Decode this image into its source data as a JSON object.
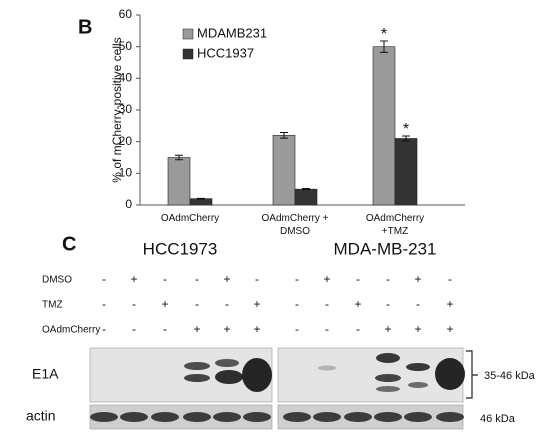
{
  "chart_data": {
    "type": "bar",
    "panel_label": "B",
    "ylabel": "% of mCherry-positive  cells",
    "categories": [
      "OAdmCherry",
      "OAdmCherry +\nDMSO",
      "OAdmCherry\n+TMZ"
    ],
    "series": [
      {
        "name": "MDAMB231",
        "color": "#9a9a9a",
        "values": [
          15,
          22,
          50
        ],
        "errors": [
          0.7,
          0.9,
          1.8
        ]
      },
      {
        "name": "HCC1937",
        "color": "#333333",
        "values": [
          2,
          5,
          21
        ],
        "errors": [
          0.1,
          0.2,
          0.8
        ]
      }
    ],
    "annotations": [
      "*",
      "*"
    ],
    "ylim": [
      0,
      60
    ],
    "yticks": [
      0,
      10,
      20,
      30,
      40,
      50,
      60
    ],
    "legend": "top-left"
  },
  "panel_c": {
    "panel_label": "C",
    "treatments": [
      "DMSO",
      "TMZ",
      "OAdmCherry"
    ],
    "groups": [
      {
        "title": "HCC1973",
        "signs": [
          [
            "-",
            "+",
            "-",
            "-",
            "+",
            "-"
          ],
          [
            "-",
            "-",
            "+",
            "-",
            "-",
            "+"
          ],
          [
            "-",
            "-",
            "-",
            "+",
            "+",
            "+"
          ]
        ]
      },
      {
        "title": "MDA-MB-231",
        "signs": [
          [
            "-",
            "+",
            "-",
            "-",
            "+",
            "-"
          ],
          [
            "-",
            "-",
            "+",
            "-",
            "-",
            "+"
          ],
          [
            "-",
            "-",
            "-",
            "+",
            "+",
            "+"
          ]
        ]
      }
    ],
    "blots": [
      {
        "label": "E1A",
        "size": "35-46 kDa"
      },
      {
        "label": "actin",
        "size": "46 kDa"
      }
    ]
  }
}
